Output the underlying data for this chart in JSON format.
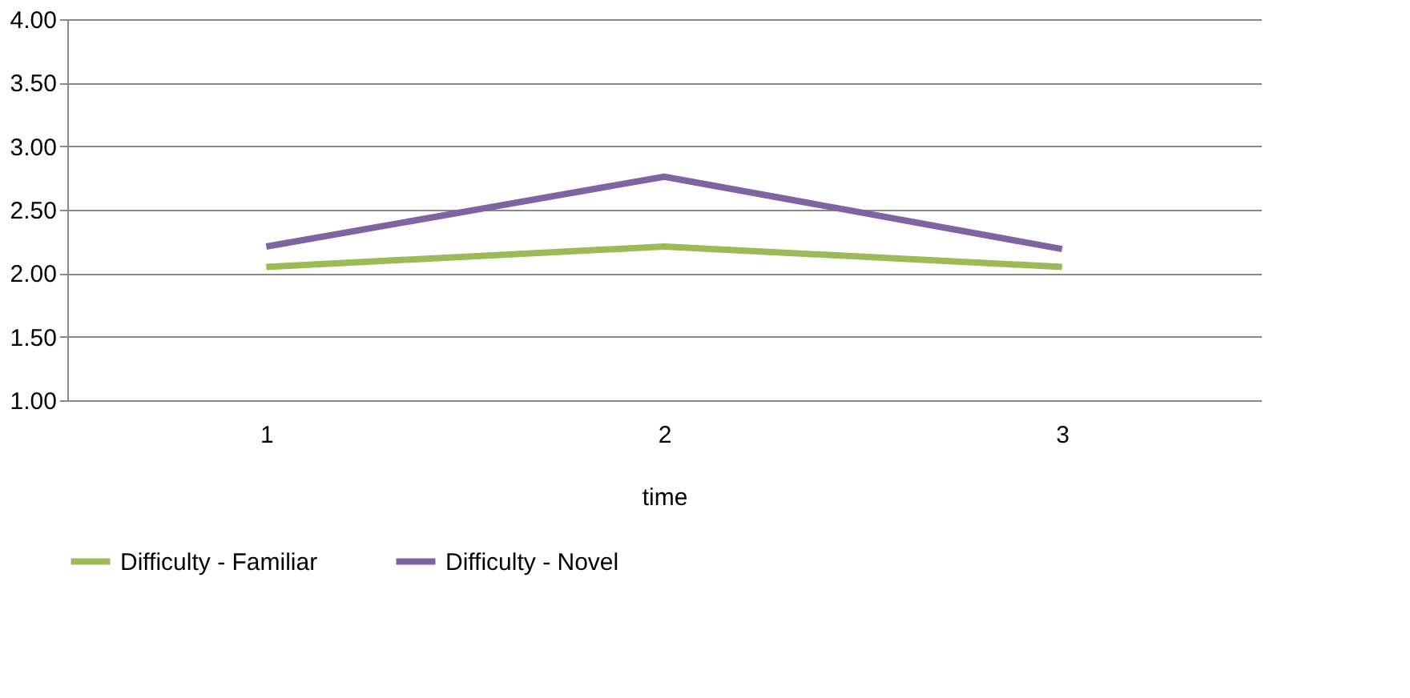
{
  "chart_data": {
    "type": "line",
    "xlabel": "time",
    "categories": [
      "1",
      "2",
      "3"
    ],
    "series": [
      {
        "name": "Difficulty - Familiar",
        "color": "#9bbb59",
        "values": [
          2.05,
          2.21,
          2.05
        ]
      },
      {
        "name": "Difficulty - Novel",
        "color": "#8064a2",
        "values": [
          2.21,
          2.76,
          2.19
        ]
      }
    ],
    "ylim": [
      1,
      4
    ],
    "yticks": [
      {
        "value": 1,
        "label": "1.00"
      },
      {
        "value": 1.5,
        "label": "1.50"
      },
      {
        "value": 2,
        "label": "2.00"
      },
      {
        "value": 2.5,
        "label": "2.50"
      },
      {
        "value": 3,
        "label": "3.00"
      },
      {
        "value": 3.5,
        "label": "3.50"
      },
      {
        "value": 4,
        "label": "4.00"
      }
    ],
    "grid": "y",
    "legend": "bottom",
    "marker": "none",
    "line_style": "solid"
  }
}
